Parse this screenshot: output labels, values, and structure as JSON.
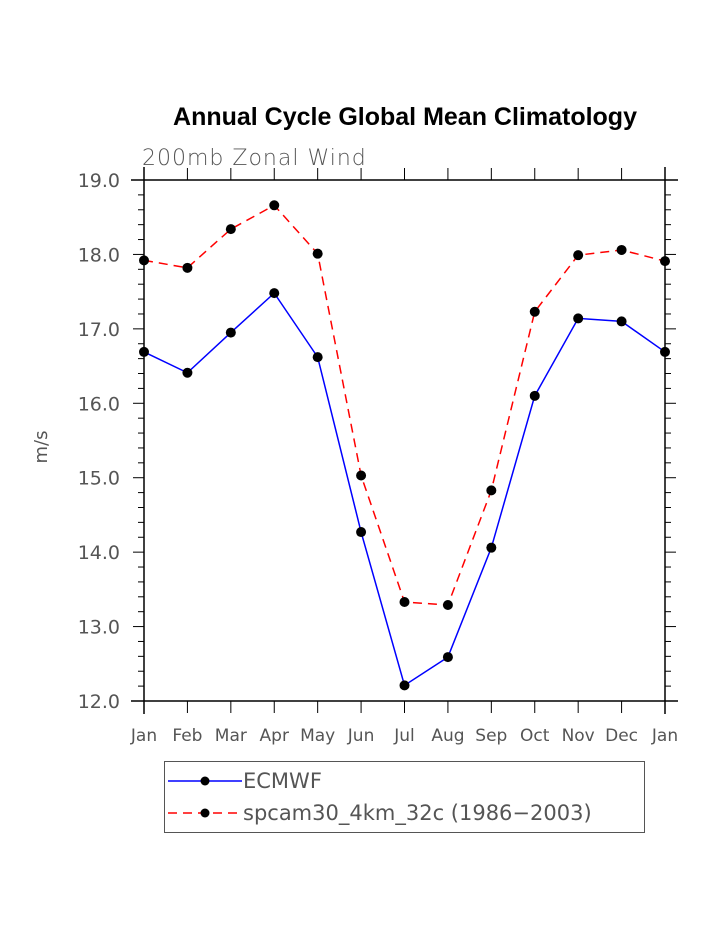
{
  "chart_data": {
    "type": "line",
    "title": "Annual Cycle Global Mean Climatology",
    "subtitle": "200mb Zonal Wind",
    "xlabel": "",
    "ylabel": "m/s",
    "ylim": [
      12.0,
      19.0
    ],
    "yticks": [
      "12.0",
      "13.0",
      "14.0",
      "15.0",
      "16.0",
      "17.0",
      "18.0",
      "19.0"
    ],
    "ytick_values": [
      12,
      13,
      14,
      15,
      16,
      17,
      18,
      19
    ],
    "y_minor_step": 0.2,
    "categories": [
      "Jan",
      "Feb",
      "Mar",
      "Apr",
      "May",
      "Jun",
      "Jul",
      "Aug",
      "Sep",
      "Oct",
      "Nov",
      "Dec",
      "Jan"
    ],
    "grid": false,
    "legend_position": "bottom",
    "series": [
      {
        "name": "ECMWF",
        "color": "#0000ff",
        "dash": "solid",
        "marker": "filled-circle",
        "values": [
          16.69,
          16.41,
          16.95,
          17.48,
          16.62,
          14.27,
          12.21,
          12.59,
          14.06,
          16.1,
          17.14,
          17.1,
          16.69
        ]
      },
      {
        "name": "spcam30_4km_32c (1986−2003)",
        "color": "#ff0000",
        "dash": "dashed",
        "marker": "filled-circle",
        "values": [
          17.92,
          17.82,
          18.34,
          18.66,
          18.01,
          15.03,
          13.33,
          13.29,
          14.83,
          17.23,
          17.99,
          18.06,
          17.91
        ]
      }
    ]
  }
}
